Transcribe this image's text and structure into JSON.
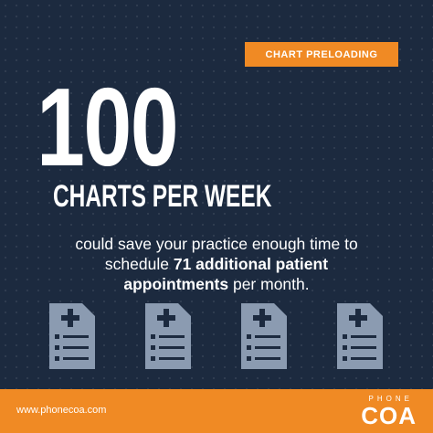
{
  "tag": "CHART PRELOADING",
  "headline": {
    "number": "100",
    "subtitle": "CHARTS PER WEEK"
  },
  "body": {
    "line1": "could save your practice enough time to",
    "schedule": "schedule",
    "bold1": "71 additional patient",
    "bold2": "appointments",
    "end": "per month."
  },
  "footer": {
    "url": "www.phonecoa.com",
    "logo_top": "PHONE",
    "logo_main": "COA"
  }
}
